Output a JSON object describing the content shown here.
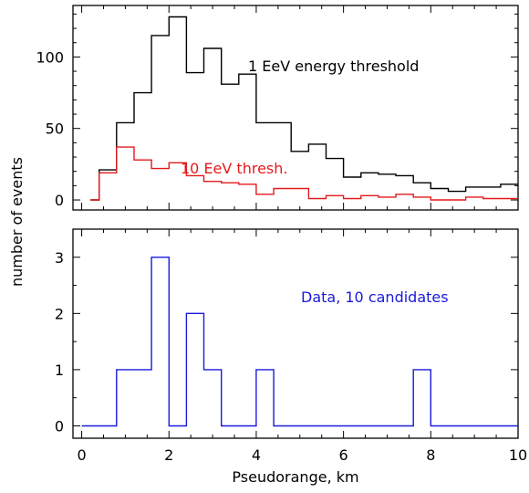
{
  "chart_data": [
    {
      "type": "histogram",
      "panel": "top",
      "xlim": [
        0,
        10
      ],
      "ylim": [
        -7,
        136
      ],
      "yticks": [
        0,
        50,
        100
      ],
      "xlabel": "",
      "ylabel": "",
      "bin_edges": [
        0.2,
        0.4,
        0.8,
        1.2,
        1.6,
        2.0,
        2.4,
        2.8,
        3.2,
        3.6,
        4.0,
        4.4,
        4.8,
        5.2,
        5.6,
        6.0,
        6.4,
        6.8,
        7.2,
        7.6,
        8.0,
        8.4,
        8.8,
        9.2,
        9.6,
        10.0
      ],
      "series": [
        {
          "name": "1 EeV energy threshold",
          "color": "#000000",
          "start": [
            0.2,
            0
          ],
          "values": [
            0,
            21,
            54,
            75,
            115,
            128,
            89,
            106,
            81,
            88,
            54,
            54,
            34,
            39,
            29,
            16,
            19,
            18,
            17,
            12,
            8,
            6,
            9,
            9,
            11
          ]
        },
        {
          "name": "10 EeV thresh.",
          "color": "#e31a1c",
          "start": [
            0.2,
            0
          ],
          "values": [
            0,
            19,
            37,
            28,
            22,
            26,
            17,
            13,
            12,
            11,
            4,
            8,
            8,
            1,
            3,
            1,
            3,
            2,
            4,
            2,
            0,
            0,
            2,
            1,
            1
          ]
        }
      ]
    },
    {
      "type": "histogram",
      "panel": "bottom",
      "xlim": [
        -0.2,
        10
      ],
      "ylim": [
        -0.22,
        3.5
      ],
      "xticks": [
        0,
        2,
        4,
        6,
        8,
        10
      ],
      "yticks": [
        0,
        1,
        2,
        3
      ],
      "xlabel": "Pseudorange, km",
      "ylabel": "",
      "bin_edges": [
        0.0,
        0.4,
        0.8,
        1.2,
        1.6,
        2.0,
        2.4,
        2.8,
        3.2,
        3.6,
        4.0,
        4.4,
        4.8,
        5.2,
        5.6,
        6.0,
        6.4,
        6.8,
        7.2,
        7.6,
        8.0,
        8.4,
        8.8,
        9.2,
        9.6,
        10.0
      ],
      "series": [
        {
          "name": "Data, 10 candidates",
          "color": "#1a1adc",
          "start": [
            0.2,
            0
          ],
          "values": [
            0,
            0,
            1,
            1,
            3,
            0,
            2,
            1,
            0,
            0,
            1,
            0,
            0,
            0,
            0,
            0,
            0,
            0,
            0,
            1,
            0,
            0,
            0,
            0,
            0
          ]
        }
      ]
    }
  ],
  "shared_ylabel": "number of events"
}
